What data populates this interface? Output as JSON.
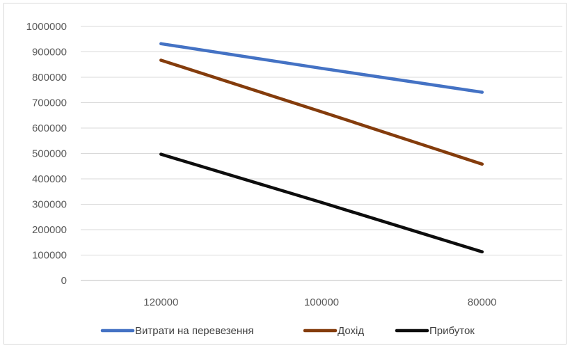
{
  "chart_data": {
    "type": "line",
    "categories": [
      "120000",
      "100000",
      "80000"
    ],
    "series": [
      {
        "name": "Витрати на перевезення",
        "color": "#4472C4",
        "values": [
          932000,
          835000,
          741000
        ]
      },
      {
        "name": "Дохід",
        "color": "#843C0C",
        "values": [
          867000,
          664000,
          458000
        ]
      },
      {
        "name": "Прибуток",
        "color": "#0D0D0D",
        "values": [
          497000,
          307000,
          113000
        ]
      }
    ],
    "ylim": [
      0,
      1000000
    ],
    "yticks": [
      "0",
      "100000",
      "200000",
      "300000",
      "400000",
      "500000",
      "600000",
      "700000",
      "800000",
      "900000",
      "1000000"
    ],
    "grid": true,
    "legend_position": "bottom"
  }
}
